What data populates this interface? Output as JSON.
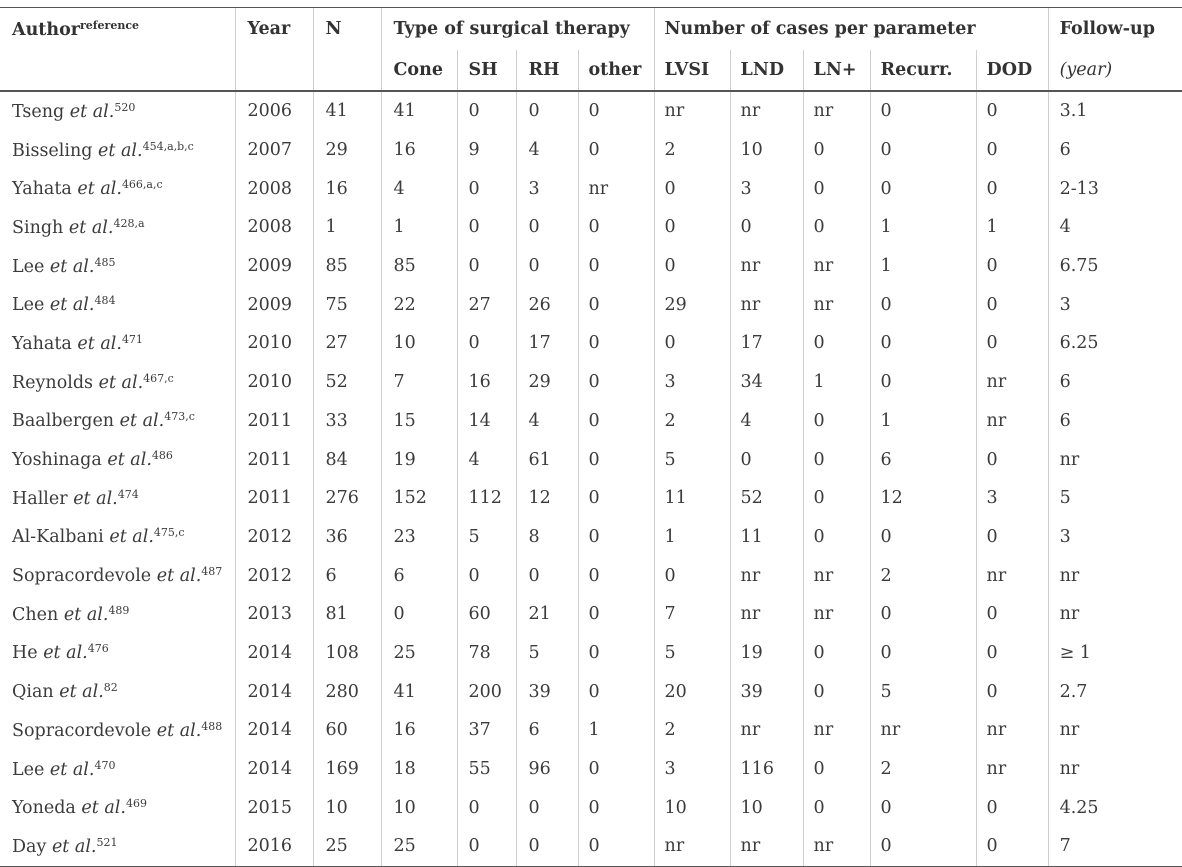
{
  "header": {
    "author": "Author",
    "author_sup": "reference",
    "year": "Year",
    "n": "N",
    "group_therapy": "Type of surgical therapy",
    "group_params": "Number of cases per parameter",
    "followup": "Follow-up",
    "sub": [
      "Cone",
      "SH",
      "RH",
      "other",
      "LVSI",
      "LND",
      "LN+",
      "Recurr.",
      "DOD"
    ],
    "followup_unit": "(year)"
  },
  "rows": [
    {
      "name": "Tseng",
      "etal": "et al.",
      "ref": "520",
      "year": "2006",
      "n": "41",
      "cone": "41",
      "sh": "0",
      "rh": "0",
      "other": "0",
      "lvsi": "nr",
      "lnd": "nr",
      "lnp": "nr",
      "recurr": "0",
      "dod": "0",
      "fu": "3.1"
    },
    {
      "name": "Bisseling",
      "etal": "et al.",
      "ref": "454,a,b,c",
      "year": "2007",
      "n": "29",
      "cone": "16",
      "sh": "9",
      "rh": "4",
      "other": "0",
      "lvsi": "2",
      "lnd": "10",
      "lnp": "0",
      "recurr": "0",
      "dod": "0",
      "fu": "6"
    },
    {
      "name": "Yahata",
      "etal": "et al.",
      "ref": "466,a,c",
      "year": "2008",
      "n": "16",
      "cone": "4",
      "sh": "0",
      "rh": "3",
      "other": "nr",
      "lvsi": "0",
      "lnd": "3",
      "lnp": "0",
      "recurr": "0",
      "dod": "0",
      "fu": "2-13"
    },
    {
      "name": "Singh",
      "etal": "et al.",
      "ref": "428,a",
      "year": "2008",
      "n": "1",
      "cone": "1",
      "sh": "0",
      "rh": "0",
      "other": "0",
      "lvsi": "0",
      "lnd": "0",
      "lnp": "0",
      "recurr": "1",
      "dod": "1",
      "fu": "4"
    },
    {
      "name": "Lee",
      "etal": "et al.",
      "ref": "485",
      "year": "2009",
      "n": "85",
      "cone": "85",
      "sh": "0",
      "rh": "0",
      "other": "0",
      "lvsi": "0",
      "lnd": "nr",
      "lnp": "nr",
      "recurr": "1",
      "dod": "0",
      "fu": "6.75"
    },
    {
      "name": "Lee",
      "etal": "et al.",
      "ref": "484",
      "year": "2009",
      "n": "75",
      "cone": "22",
      "sh": "27",
      "rh": "26",
      "other": "0",
      "lvsi": "29",
      "lnd": "nr",
      "lnp": "nr",
      "recurr": "0",
      "dod": "0",
      "fu": "3"
    },
    {
      "name": "Yahata",
      "etal": "et al.",
      "ref": "471",
      "year": "2010",
      "n": "27",
      "cone": "10",
      "sh": "0",
      "rh": "17",
      "other": "0",
      "lvsi": "0",
      "lnd": "17",
      "lnp": "0",
      "recurr": "0",
      "dod": "0",
      "fu": "6.25"
    },
    {
      "name": "Reynolds",
      "etal": "et al.",
      "ref": "467,c",
      "year": "2010",
      "n": "52",
      "cone": "7",
      "sh": "16",
      "rh": "29",
      "other": "0",
      "lvsi": "3",
      "lnd": "34",
      "lnp": "1",
      "recurr": "0",
      "dod": "nr",
      "fu": "6"
    },
    {
      "name": "Baalbergen",
      "etal": "et al.",
      "ref": "473,c",
      "year": "2011",
      "n": "33",
      "cone": "15",
      "sh": "14",
      "rh": "4",
      "other": "0",
      "lvsi": "2",
      "lnd": "4",
      "lnp": "0",
      "recurr": "1",
      "dod": "nr",
      "fu": "6"
    },
    {
      "name": "Yoshinaga",
      "etal": "et al.",
      "ref": "486",
      "year": "2011",
      "n": "84",
      "cone": "19",
      "sh": "4",
      "rh": "61",
      "other": "0",
      "lvsi": "5",
      "lnd": "0",
      "lnp": "0",
      "recurr": "6",
      "dod": "0",
      "fu": "nr"
    },
    {
      "name": "Haller",
      "etal": "et al.",
      "ref": "474",
      "year": "2011",
      "n": "276",
      "cone": "152",
      "sh": "112",
      "rh": "12",
      "other": "0",
      "lvsi": "11",
      "lnd": "52",
      "lnp": "0",
      "recurr": "12",
      "dod": "3",
      "fu": "5"
    },
    {
      "name": "Al-Kalbani",
      "etal": "et al.",
      "ref": "475,c",
      "year": "2012",
      "n": "36",
      "cone": "23",
      "sh": "5",
      "rh": "8",
      "other": "0",
      "lvsi": "1",
      "lnd": "11",
      "lnp": "0",
      "recurr": "0",
      "dod": "0",
      "fu": "3"
    },
    {
      "name": "Sopracordevole",
      "etal": "et al.",
      "ref": "487",
      "year": "2012",
      "n": "6",
      "cone": "6",
      "sh": "0",
      "rh": "0",
      "other": "0",
      "lvsi": "0",
      "lnd": "nr",
      "lnp": "nr",
      "recurr": "2",
      "dod": "nr",
      "fu": "nr"
    },
    {
      "name": "Chen",
      "etal": "et al.",
      "ref": "489",
      "year": "2013",
      "n": "81",
      "cone": "0",
      "sh": "60",
      "rh": "21",
      "other": "0",
      "lvsi": "7",
      "lnd": "nr",
      "lnp": "nr",
      "recurr": "0",
      "dod": "0",
      "fu": "nr"
    },
    {
      "name": "He",
      "etal": "et al.",
      "ref": "476",
      "year": "2014",
      "n": "108",
      "cone": "25",
      "sh": "78",
      "rh": "5",
      "other": "0",
      "lvsi": "5",
      "lnd": "19",
      "lnp": "0",
      "recurr": "0",
      "dod": "0",
      "fu": "≥ 1"
    },
    {
      "name": "Qian",
      "etal": "et al.",
      "ref": "82",
      "year": "2014",
      "n": "280",
      "cone": "41",
      "sh": "200",
      "rh": "39",
      "other": "0",
      "lvsi": "20",
      "lnd": "39",
      "lnp": "0",
      "recurr": "5",
      "dod": "0",
      "fu": "2.7"
    },
    {
      "name": "Sopracordevole",
      "etal": "et al.",
      "ref": "488",
      "year": "2014",
      "n": "60",
      "cone": "16",
      "sh": "37",
      "rh": "6",
      "other": "1",
      "lvsi": "2",
      "lnd": "nr",
      "lnp": "nr",
      "recurr": "nr",
      "dod": "nr",
      "fu": "nr"
    },
    {
      "name": "Lee",
      "etal": "et al.",
      "ref": "470",
      "year": "2014",
      "n": "169",
      "cone": "18",
      "sh": "55",
      "rh": "96",
      "other": "0",
      "lvsi": "3",
      "lnd": "116",
      "lnp": "0",
      "recurr": "2",
      "dod": "nr",
      "fu": "nr"
    },
    {
      "name": "Yoneda",
      "etal": "et al.",
      "ref": "469",
      "year": "2015",
      "n": "10",
      "cone": "10",
      "sh": "0",
      "rh": "0",
      "other": "0",
      "lvsi": "10",
      "lnd": "10",
      "lnp": "0",
      "recurr": "0",
      "dod": "0",
      "fu": "4.25"
    },
    {
      "name": "Day",
      "etal": "et al.",
      "ref": "521",
      "year": "2016",
      "n": "25",
      "cone": "25",
      "sh": "0",
      "rh": "0",
      "other": "0",
      "lvsi": "nr",
      "lnd": "nr",
      "lnp": "nr",
      "recurr": "0",
      "dod": "0",
      "fu": "7"
    }
  ]
}
